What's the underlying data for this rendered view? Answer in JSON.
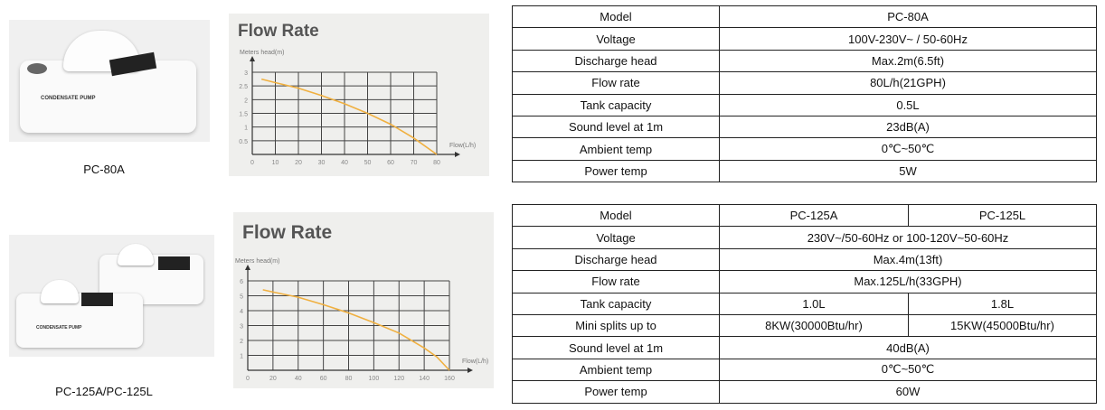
{
  "products": [
    {
      "label": "PC-80A",
      "device_text": "CONDENSATE PUMP"
    },
    {
      "label": "PC-125A/PC-125L",
      "device_text": "CONDENSATE PUMP"
    }
  ],
  "chart_data": [
    {
      "type": "line",
      "title": "Flow Rate",
      "ylabel": "Meters head(m)",
      "xlabel": "Flow(L/h)",
      "xlim": [
        0,
        80
      ],
      "ylim": [
        0,
        3
      ],
      "xticks": [
        "0",
        "10",
        "20",
        "30",
        "40",
        "50",
        "60",
        "70",
        "80"
      ],
      "yticks": [
        "0.5",
        "1",
        "1.5",
        "2",
        "2.5",
        "3"
      ],
      "grid": true,
      "line_color": "#f0b040",
      "x": [
        4,
        10,
        20,
        30,
        40,
        50,
        60,
        70,
        80
      ],
      "y": [
        2.75,
        2.62,
        2.42,
        2.15,
        1.85,
        1.5,
        1.1,
        0.6,
        0
      ]
    },
    {
      "type": "line",
      "title": "Flow Rate",
      "ylabel": "Meters head(m)",
      "xlabel": "Flow(L/h)",
      "xlim": [
        0,
        160
      ],
      "ylim": [
        0,
        6
      ],
      "xticks": [
        "0",
        "20",
        "40",
        "60",
        "80",
        "100",
        "120",
        "140",
        "160"
      ],
      "yticks": [
        "1",
        "2",
        "3",
        "4",
        "5",
        "6"
      ],
      "grid": true,
      "line_color": "#f0b040",
      "x": [
        12,
        20,
        40,
        60,
        80,
        100,
        120,
        140,
        150,
        160
      ],
      "y": [
        5.4,
        5.25,
        4.9,
        4.4,
        3.85,
        3.2,
        2.5,
        1.5,
        0.9,
        0
      ]
    }
  ],
  "table1": {
    "rows": [
      [
        "Model",
        "PC-80A"
      ],
      [
        "Voltage",
        "100V-230V~ / 50-60Hz"
      ],
      [
        "Discharge head",
        "Max.2m(6.5ft)"
      ],
      [
        "Flow rate",
        "80L/h(21GPH)"
      ],
      [
        "Tank capacity",
        "0.5L"
      ],
      [
        "Sound level at 1m",
        "23dB(A)"
      ],
      [
        "Ambient temp",
        "0℃~50℃"
      ],
      [
        "Power temp",
        "5W"
      ]
    ]
  },
  "table2": {
    "rows": [
      [
        "Model",
        "PC-125A",
        "PC-125L"
      ],
      [
        "Voltage",
        "230V~/50-60Hz or 100-120V~50-60Hz"
      ],
      [
        "Discharge head",
        "Max.4m(13ft)"
      ],
      [
        "Flow rate",
        "Max.125L/h(33GPH)"
      ],
      [
        "Tank capacity",
        "1.0L",
        "1.8L"
      ],
      [
        "Mini splits up to",
        "8KW(30000Btu/hr)",
        "15KW(45000Btu/hr)"
      ],
      [
        "Sound level at 1m",
        "40dB(A)"
      ],
      [
        "Ambient temp",
        "0℃~50℃"
      ],
      [
        "Power temp",
        "60W"
      ]
    ]
  }
}
